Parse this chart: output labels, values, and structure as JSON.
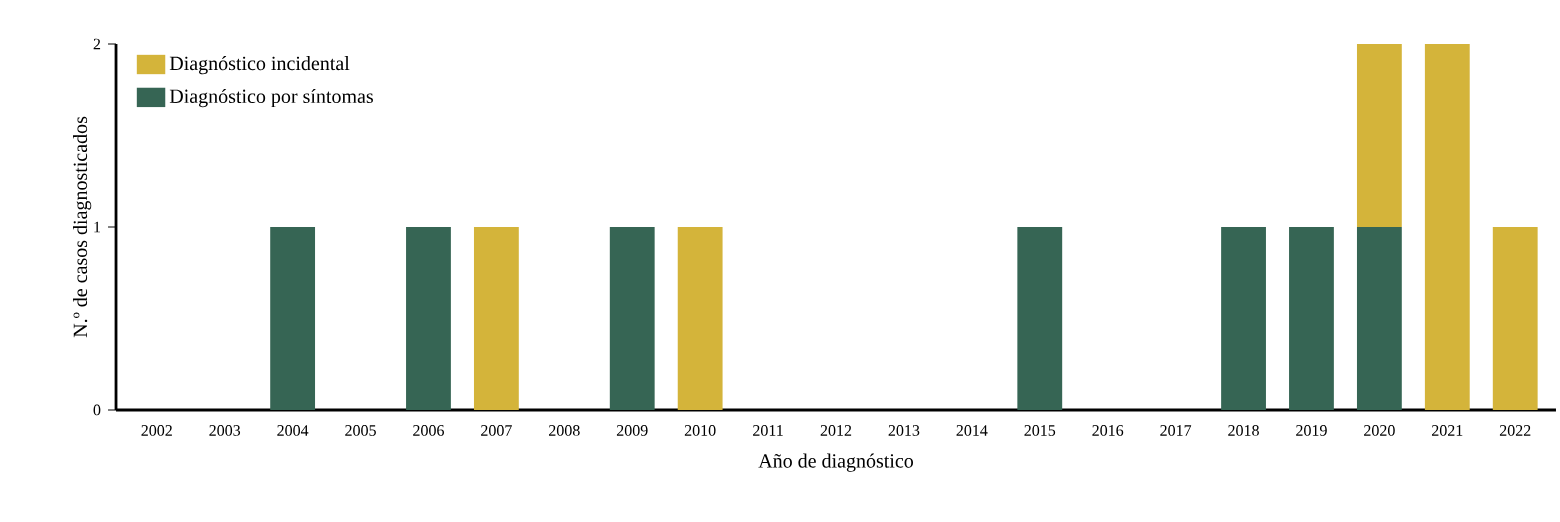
{
  "chart_data": {
    "type": "bar",
    "stacked": true,
    "xlabel": "Año de diagnóstico",
    "ylabel": "N.º de casos diagnosticados",
    "categories": [
      "2002",
      "2003",
      "2004",
      "2005",
      "2006",
      "2007",
      "2008",
      "2009",
      "2010",
      "2011",
      "2012",
      "2013",
      "2014",
      "2015",
      "2016",
      "2017",
      "2018",
      "2019",
      "2020",
      "2021",
      "2022"
    ],
    "series": [
      {
        "name": "Diagnóstico por síntomas",
        "color": "#366554",
        "values": [
          0,
          0,
          1,
          0,
          1,
          0,
          0,
          1,
          0,
          0,
          0,
          0,
          0,
          1,
          0,
          0,
          1,
          1,
          1,
          0,
          0
        ]
      },
      {
        "name": "Diagnóstico incidental",
        "color": "#d4b43a",
        "values": [
          0,
          0,
          0,
          0,
          0,
          1,
          0,
          0,
          1,
          0,
          0,
          0,
          0,
          0,
          0,
          0,
          0,
          0,
          1,
          2,
          1
        ]
      }
    ],
    "ylim": [
      0,
      2
    ],
    "yticks": [
      0,
      1,
      2
    ],
    "grid": false,
    "legend": "top left"
  }
}
